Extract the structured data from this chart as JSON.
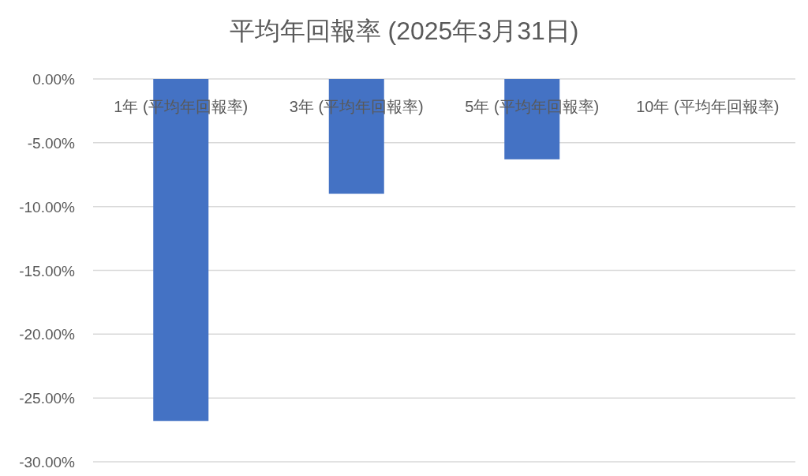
{
  "chart_data": {
    "type": "bar",
    "title": "平均年回報率 (2025年3月31日)",
    "categories": [
      "1年 (平均年回報率)",
      "3年 (平均年回報率)",
      "5年 (平均年回報率)",
      "10年 (平均年回報率)"
    ],
    "values": [
      -26.8,
      -9.0,
      -6.3,
      null
    ],
    "color": "#4472c4",
    "ylim": [
      -30,
      0
    ],
    "yticks": [
      {
        "value": 0,
        "label": "0.00%"
      },
      {
        "value": -5,
        "label": "-5.00%"
      },
      {
        "value": -10,
        "label": "-10.00%"
      },
      {
        "value": -15,
        "label": "-15.00%"
      },
      {
        "value": -20,
        "label": "-20.00%"
      },
      {
        "value": -25,
        "label": "-25.00%"
      },
      {
        "value": -30,
        "label": "-30.00%"
      }
    ],
    "grid": "y"
  }
}
